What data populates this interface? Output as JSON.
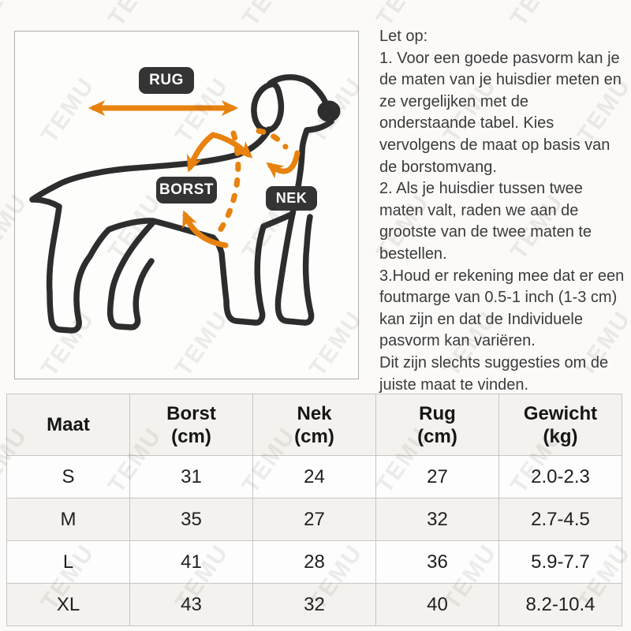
{
  "watermark": {
    "text": "TEMU"
  },
  "diagram": {
    "labels": {
      "rug": "RUG",
      "borst": "BORST",
      "nek": "NEK"
    },
    "colors": {
      "accent_orange": "#E8820E",
      "badge_dark": "#343434",
      "outline_dark": "#2d2d2d"
    }
  },
  "note": {
    "lines": [
      "Let op:",
      "1. Voor een goede pasvorm kan je",
      "de maten van je huisdier meten en",
      "ze vergelijken met de",
      "onderstaande tabel. Kies",
      "vervolgens de maat op basis van",
      "de borstomvang.",
      "2. Als je huisdier tussen twee",
      "maten valt, raden we aan de",
      "grootste van de twee maten te",
      "bestellen.",
      "3.Houd er rekening mee dat er een",
      "foutmarge van 0.5-1 inch (1-3 cm)",
      "kan zijn en dat de Individuele",
      "pasvorm kan variëren.",
      "Dit zijn slechts suggesties om de",
      "juiste maat te vinden."
    ]
  },
  "table": {
    "headers": [
      {
        "label": "Maat",
        "unit": ""
      },
      {
        "label": "Borst",
        "unit": "(cm)"
      },
      {
        "label": "Nek",
        "unit": "(cm)"
      },
      {
        "label": "Rug",
        "unit": "(cm)"
      },
      {
        "label": "Gewicht",
        "unit": "(kg)"
      }
    ],
    "rows": [
      [
        "S",
        "31",
        "24",
        "27",
        "2.0-2.3"
      ],
      [
        "M",
        "35",
        "27",
        "32",
        "2.7-4.5"
      ],
      [
        "L",
        "41",
        "28",
        "36",
        "5.9-7.7"
      ],
      [
        "XL",
        "43",
        "32",
        "40",
        "8.2-10.4"
      ]
    ]
  }
}
